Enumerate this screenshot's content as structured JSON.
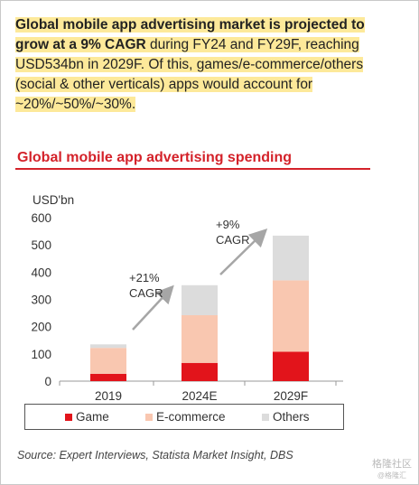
{
  "intro": {
    "highlight_bold": "Global mobile app advertising market is projected to grow at a 9% CAGR",
    "rest": " during FY24 and FY29F, reaching USD534bn in 2029F. Of this, games/e-commerce/others (social & other verticals) apps would account for ~20%/~50%/~30%."
  },
  "chart_title": "Global mobile app advertising spending",
  "chart_data": {
    "type": "bar",
    "stacked": true,
    "ylabel": "USD'bn",
    "ylim": [
      0,
      600
    ],
    "yticks": [
      0,
      100,
      200,
      300,
      400,
      500,
      600
    ],
    "categories": [
      "2019",
      "2024E",
      "2029F"
    ],
    "series": [
      {
        "name": "Game",
        "color": "#e2141b",
        "values": [
          27,
          67,
          108
        ]
      },
      {
        "name": "E-commerce",
        "color": "#f9c7b0",
        "values": [
          95,
          175,
          262
        ]
      },
      {
        "name": "Others",
        "color": "#dcdcdc",
        "values": [
          13,
          110,
          164
        ]
      }
    ],
    "annotations": [
      {
        "line1": "+21%",
        "line2": "CAGR"
      },
      {
        "line1": "+9%",
        "line2": "CAGR"
      }
    ],
    "legend_position": "bottom"
  },
  "source": "Source: Expert Interviews, Statista Market Insight, DBS",
  "watermark": "格隆社区",
  "watermark_sub": "@格隆汇"
}
